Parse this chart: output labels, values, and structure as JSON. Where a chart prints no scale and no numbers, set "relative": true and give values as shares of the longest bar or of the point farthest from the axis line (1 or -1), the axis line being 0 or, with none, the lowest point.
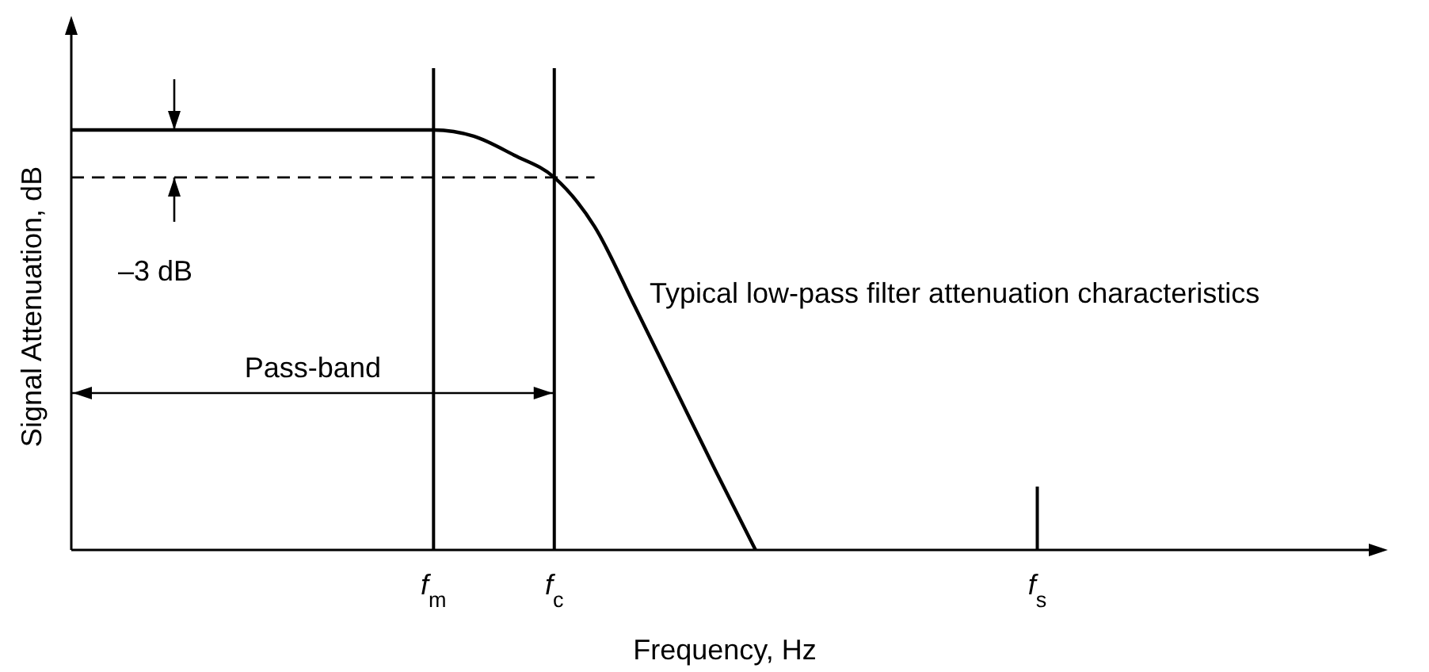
{
  "chart_data": {
    "type": "line",
    "relative": true,
    "xlabel": "Frequency, Hz",
    "ylabel": "Signal Attenuation, dB",
    "categories": [
      null,
      null,
      null,
      null,
      null,
      null,
      null,
      null,
      null,
      "f$_{m}$",
      null,
      null,
      "f$_{c}$",
      null,
      null,
      null,
      null,
      null,
      null,
      null,
      null,
      null,
      null,
      null,
      "f$_{s}$",
      null,
      null,
      null,
      null,
      null,
      null,
      null,
      null
    ],
    "values": [
      1,
      1,
      1,
      1,
      1,
      1,
      1,
      1,
      1,
      1,
      0.985,
      0.94,
      0.887,
      0.77,
      0.58,
      0.385,
      0.19,
      0,
      null,
      null,
      null,
      null,
      null,
      null,
      null,
      null,
      null,
      null,
      null,
      null,
      null,
      null,
      null
    ],
    "color": "#000000",
    "line_style": "solid",
    "marker": "none",
    "ref_lines": [
      {
        "axis": "x",
        "value": "f$_{m}$",
        "label": null
      },
      {
        "axis": "x",
        "value": "f$_{c}$",
        "label": null
      },
      {
        "axis": "y",
        "value": 0.887,
        "label": "–3 dB",
        "line_style": "dashed"
      }
    ],
    "annotations": [
      "Pass-band",
      "Typical low-pass filter attenuation characteristics"
    ],
    "grid": false
  }
}
